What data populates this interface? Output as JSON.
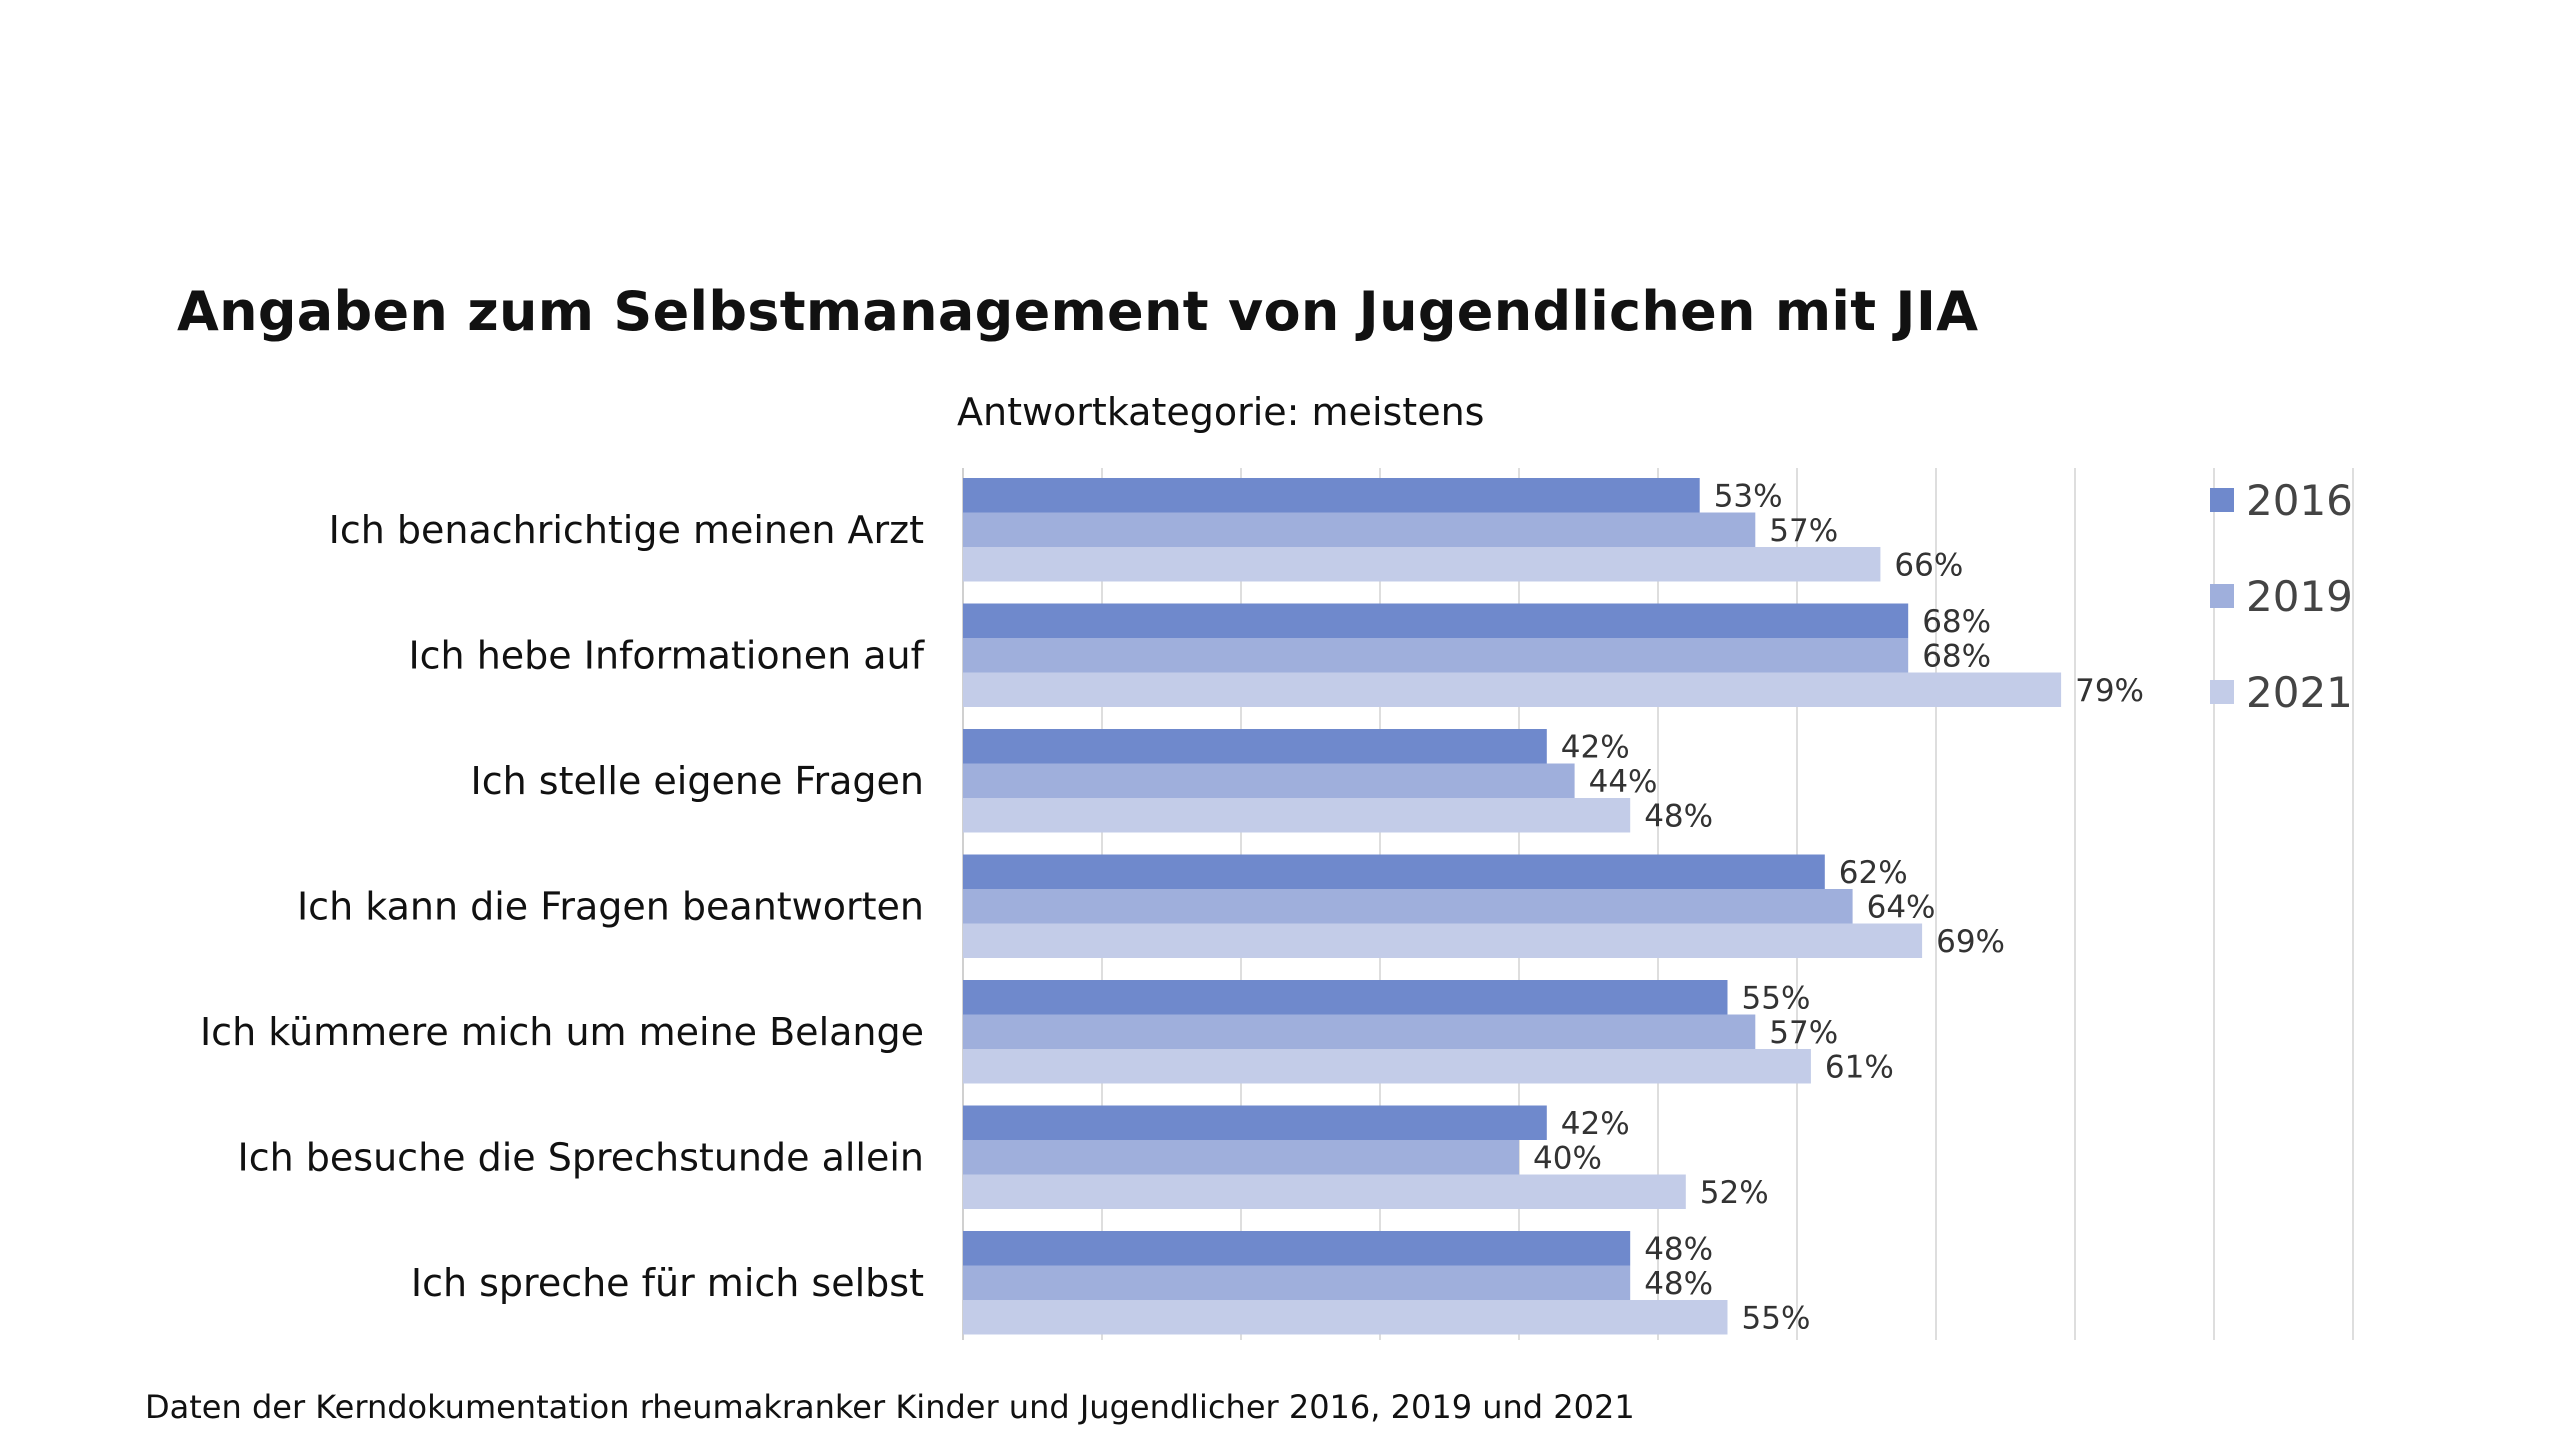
{
  "title": "Angaben zum Selbstmanagement von Jugendlichen mit JIA",
  "subtitle": "Antwortkategorie: meistens",
  "footnote": "Daten der Kerndokumentation rheumakranker Kinder und Jugendlicher 2016, 2019 und 2021",
  "chart_data": {
    "type": "bar",
    "orientation": "horizontal",
    "categories": [
      "Ich benachrichtige meinen Arzt",
      "Ich hebe Informationen auf",
      "Ich stelle eigene Fragen",
      "Ich kann die Fragen beantworten",
      "Ich kümmere mich um meine Belange",
      "Ich besuche die Sprechstunde allein",
      "Ich spreche für mich selbst"
    ],
    "series": [
      {
        "name": "2016",
        "color": "#6f89cc",
        "values": [
          53,
          68,
          42,
          62,
          55,
          42,
          48
        ]
      },
      {
        "name": "2019",
        "color": "#9fafdc",
        "values": [
          57,
          68,
          44,
          64,
          57,
          40,
          48
        ]
      },
      {
        "name": "2021",
        "color": "#c3cce8",
        "values": [
          66,
          79,
          48,
          69,
          61,
          52,
          55
        ]
      }
    ],
    "value_suffix": "%",
    "xlim": [
      0,
      100
    ],
    "grid": true,
    "legend": "top-right"
  }
}
